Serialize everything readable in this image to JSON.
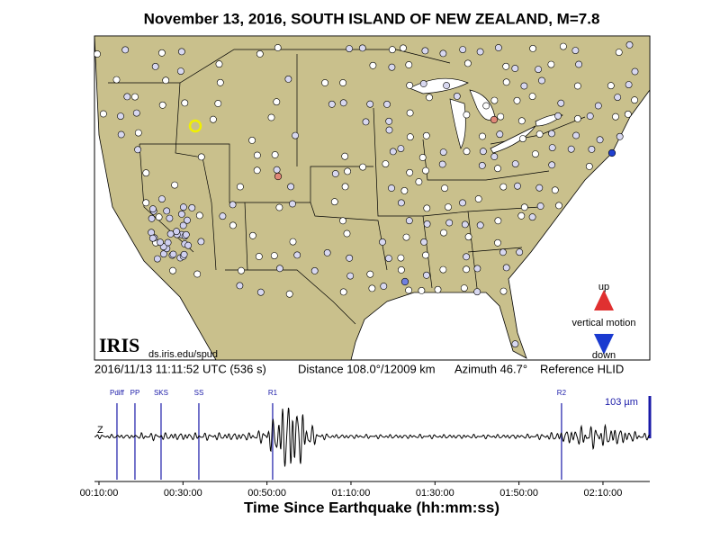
{
  "title": "November 13, 2016, SOUTH ISLAND OF NEW ZEALAND, M=7.8",
  "map": {
    "logo": "IRIS",
    "credit": "ds.iris.edu/spud"
  },
  "legend": {
    "up": "up",
    "label": "vertical motion",
    "down": "down"
  },
  "info": {
    "time": "2016/11/13 11:11:52 UTC (536 s)",
    "distance": "Distance 108.0°/12009 km",
    "azimuth": "Azimuth  46.7°",
    "reference": "Reference HLID"
  },
  "seismogram": {
    "channel": "Z",
    "scale_label": "103 µm",
    "xlim": [
      536,
      8469
    ],
    "xticks": [
      {
        "value": 600,
        "label": "00:10:00"
      },
      {
        "value": 1800,
        "label": "00:30:00"
      },
      {
        "value": 3000,
        "label": "00:50:00"
      },
      {
        "value": 4200,
        "label": "01:10:00"
      },
      {
        "value": 5400,
        "label": "01:30:00"
      },
      {
        "value": 6600,
        "label": "01:50:00"
      },
      {
        "value": 7800,
        "label": "02:10:00"
      }
    ],
    "phases": [
      {
        "label": "Pdiff",
        "time": 857
      },
      {
        "label": "PP",
        "time": 1114
      },
      {
        "label": "SKS",
        "time": 1487
      },
      {
        "label": "SS",
        "time": 2027
      },
      {
        "label": "R1",
        "time": 3081
      },
      {
        "label": "R2",
        "time": 7208
      }
    ],
    "xlabel": "Time Since Earthquake (hh:mm:ss)"
  }
}
